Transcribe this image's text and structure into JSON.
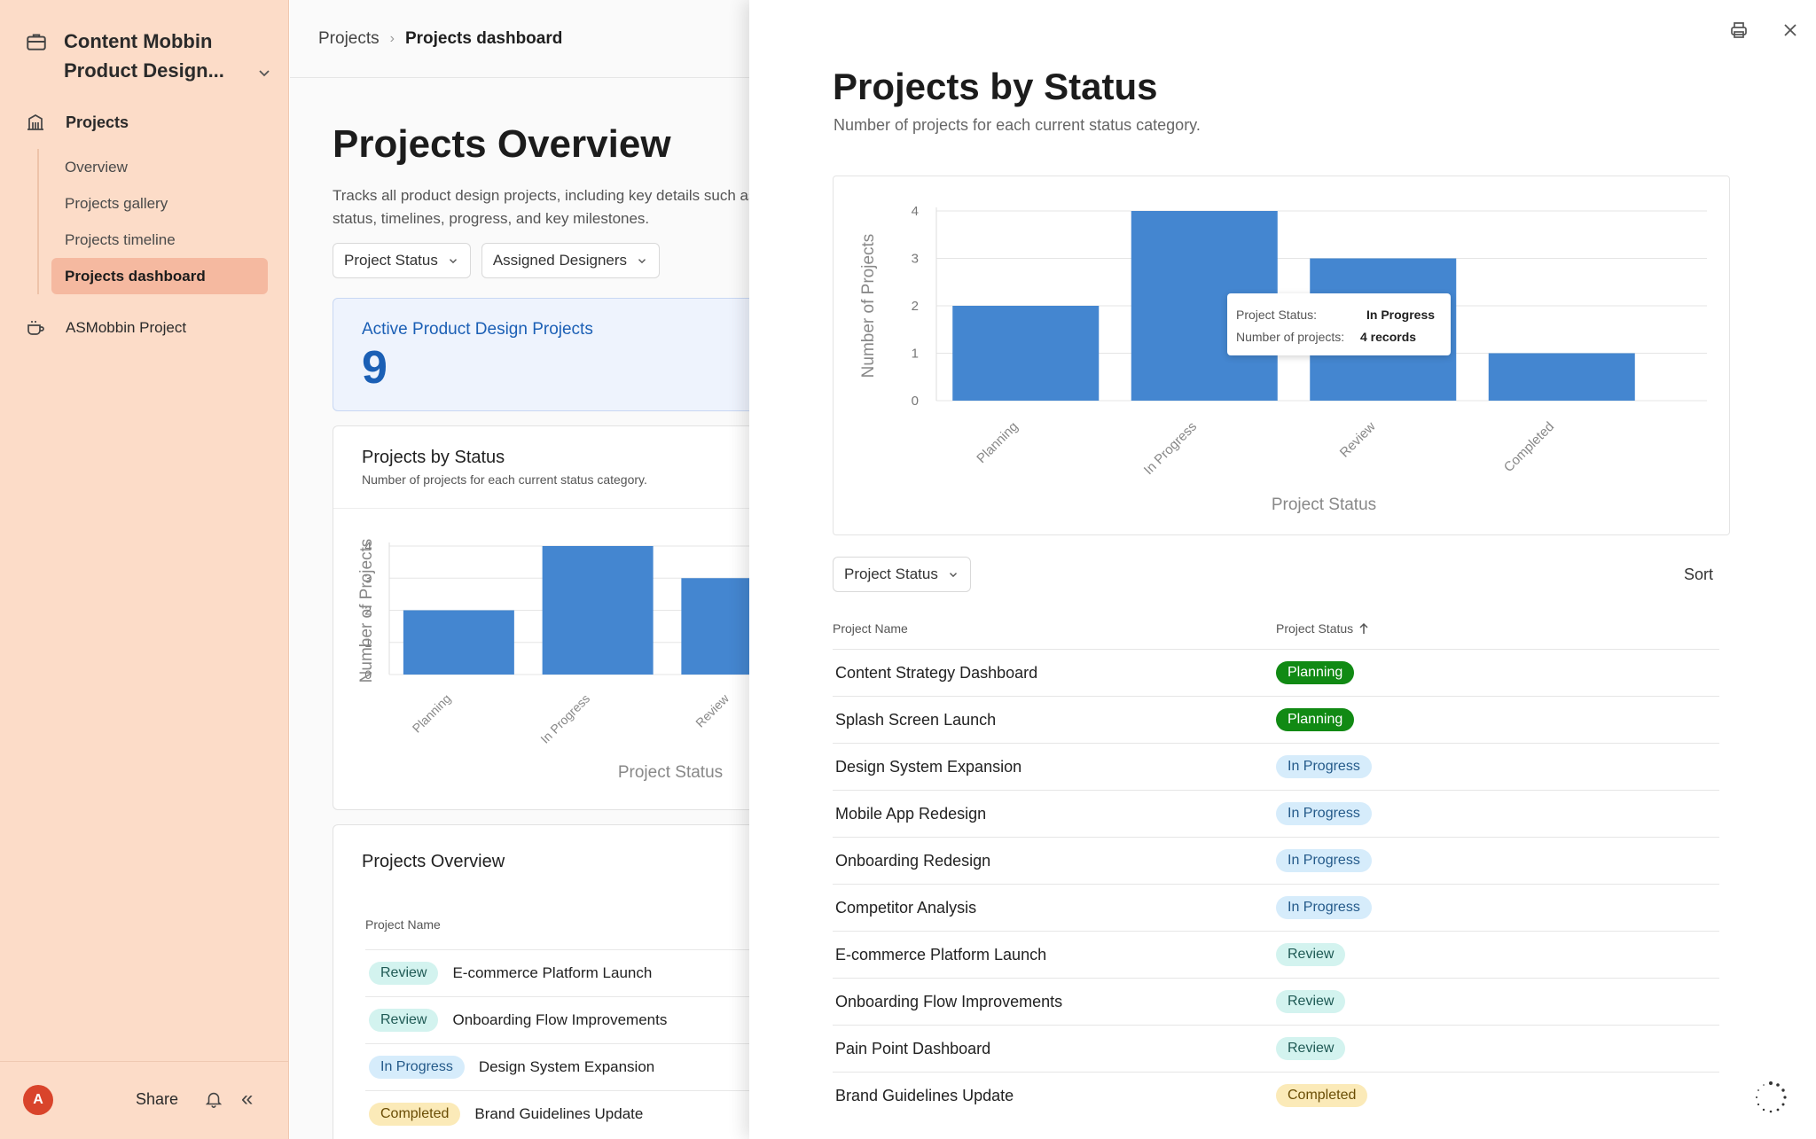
{
  "sidebar": {
    "workspace_title": "Content Mobbin Product Design...",
    "section_label": "Projects",
    "items": [
      {
        "label": "Overview",
        "active": false
      },
      {
        "label": "Projects gallery",
        "active": false
      },
      {
        "label": "Projects timeline",
        "active": false
      },
      {
        "label": "Projects dashboard",
        "active": true
      }
    ],
    "other_project": "ASMobbin Project",
    "footer": {
      "avatar_letter": "A",
      "share_label": "Share"
    }
  },
  "breadcrumb": {
    "parent": "Projects",
    "current": "Projects dashboard"
  },
  "main": {
    "title": "Projects Overview",
    "description": "Tracks all product design projects, including key details such as status, timelines, progress, and key milestones.",
    "filters": [
      {
        "label": "Project Status"
      },
      {
        "label": "Assigned Designers"
      }
    ],
    "stat": {
      "label": "Active Product Design Projects",
      "value": "9"
    },
    "chart_card": {
      "title": "Projects by Status",
      "subtitle": "Number of projects for each current status category."
    },
    "table_card": {
      "title": "Projects Overview",
      "column": "Project Name",
      "rows": [
        {
          "status": "Review",
          "name": "E-commerce Platform Launch"
        },
        {
          "status": "Review",
          "name": "Onboarding Flow Improvements"
        },
        {
          "status": "In Progress",
          "name": "Design System Expansion"
        },
        {
          "status": "Completed",
          "name": "Brand Guidelines Update"
        }
      ]
    }
  },
  "panel": {
    "title": "Projects by Status",
    "subtitle": "Number of projects for each current status category.",
    "tooltip": {
      "k1": "Project Status:",
      "v1": "In Progress",
      "k2": "Number of projects:",
      "v2": "4 records"
    },
    "filter_label": "Project Status",
    "sort_label": "Sort",
    "table": {
      "col_name": "Project Name",
      "col_status": "Project Status",
      "rows": [
        {
          "name": "Content Strategy Dashboard",
          "status": "Planning"
        },
        {
          "name": "Splash Screen Launch",
          "status": "Planning"
        },
        {
          "name": "Design System Expansion",
          "status": "In Progress"
        },
        {
          "name": "Mobile App Redesign",
          "status": "In Progress"
        },
        {
          "name": "Onboarding Redesign",
          "status": "In Progress"
        },
        {
          "name": "Competitor Analysis",
          "status": "In Progress"
        },
        {
          "name": "E-commerce Platform Launch",
          "status": "Review"
        },
        {
          "name": "Onboarding Flow Improvements",
          "status": "Review"
        },
        {
          "name": "Pain Point Dashboard",
          "status": "Review"
        },
        {
          "name": "Brand Guidelines Update",
          "status": "Completed"
        }
      ]
    }
  },
  "chart_data": {
    "type": "bar",
    "categories": [
      "Planning",
      "In Progress",
      "Review",
      "Completed"
    ],
    "values": [
      2,
      4,
      3,
      1
    ],
    "xlabel": "Project Status",
    "ylabel": "Number of Projects",
    "ylim": [
      0,
      4
    ],
    "yticks": [
      "0",
      "1",
      "2",
      "3",
      "4"
    ],
    "bar_color": "#4486d0",
    "grid": true
  },
  "colors": {
    "sidebar_bg": "#fcdcc8",
    "active_nav": "#f5b9a0",
    "accent_blue": "#1b5fb5",
    "planning_badge": "#118a14",
    "progress_badge": "#d6ecfb",
    "review_badge": "#d3f3ef",
    "completed_badge": "#fbeab8"
  }
}
